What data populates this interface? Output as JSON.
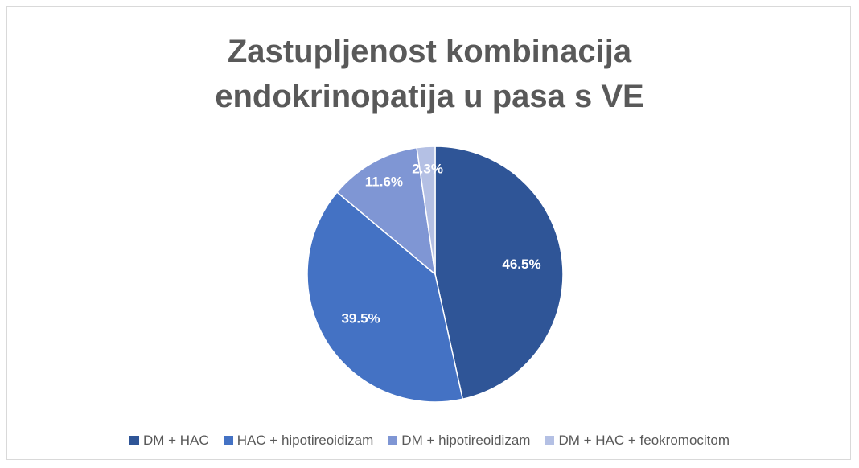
{
  "chart_data": {
    "type": "pie",
    "title": "Zastupljenost kombinacija endokrinopatija u pasa s VE",
    "categories": [
      "DM + HAC",
      "HAC + hipotireoidizam",
      "DM + hipotireoidizam",
      "DM + HAC + feokromocitom"
    ],
    "values": [
      46.5,
      39.5,
      11.6,
      2.3
    ],
    "value_labels": [
      "46.5%",
      "39.5%",
      "11.6%",
      "2.3%"
    ],
    "colors": [
      "#2f5597",
      "#4472c4",
      "#7f96d4",
      "#b4c0e4"
    ],
    "legend": "bottom"
  }
}
